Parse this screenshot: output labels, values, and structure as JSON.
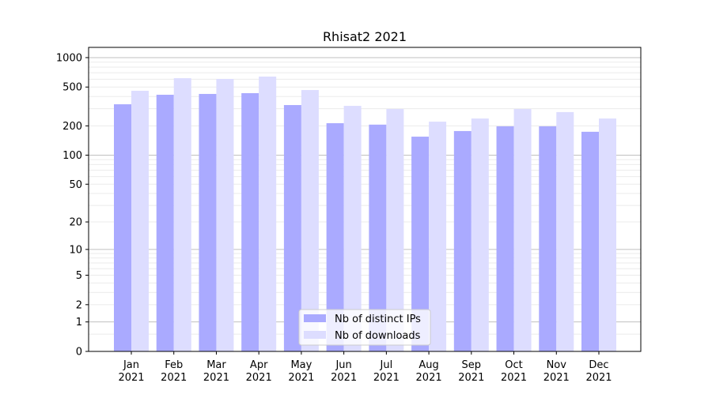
{
  "chart_data": {
    "type": "bar",
    "title": "Rhisat2 2021",
    "xlabel": "",
    "ylabel": "",
    "yscale": "symlog (log10(1+y))",
    "ylim": [
      0,
      1300
    ],
    "yticks": [
      0,
      1,
      2,
      5,
      10,
      20,
      50,
      100,
      200,
      500,
      1000
    ],
    "grid": true,
    "legend_position": "bottom-center",
    "categories": [
      "Jan\n2021",
      "Feb\n2021",
      "Mar\n2021",
      "Apr\n2021",
      "May\n2021",
      "Jun\n2021",
      "Jul\n2021",
      "Aug\n2021",
      "Sep\n2021",
      "Oct\n2021",
      "Nov\n2021",
      "Dec\n2021"
    ],
    "series": [
      {
        "name": "Nb of distinct IPs",
        "color": "#aaaaff",
        "values": [
          333,
          417,
          425,
          433,
          327,
          213,
          206,
          155,
          177,
          198,
          198,
          174
        ]
      },
      {
        "name": "Nb of downloads",
        "color": "#ddddff",
        "values": [
          458,
          616,
          605,
          640,
          466,
          321,
          298,
          221,
          238,
          298,
          277,
          238
        ]
      }
    ]
  }
}
